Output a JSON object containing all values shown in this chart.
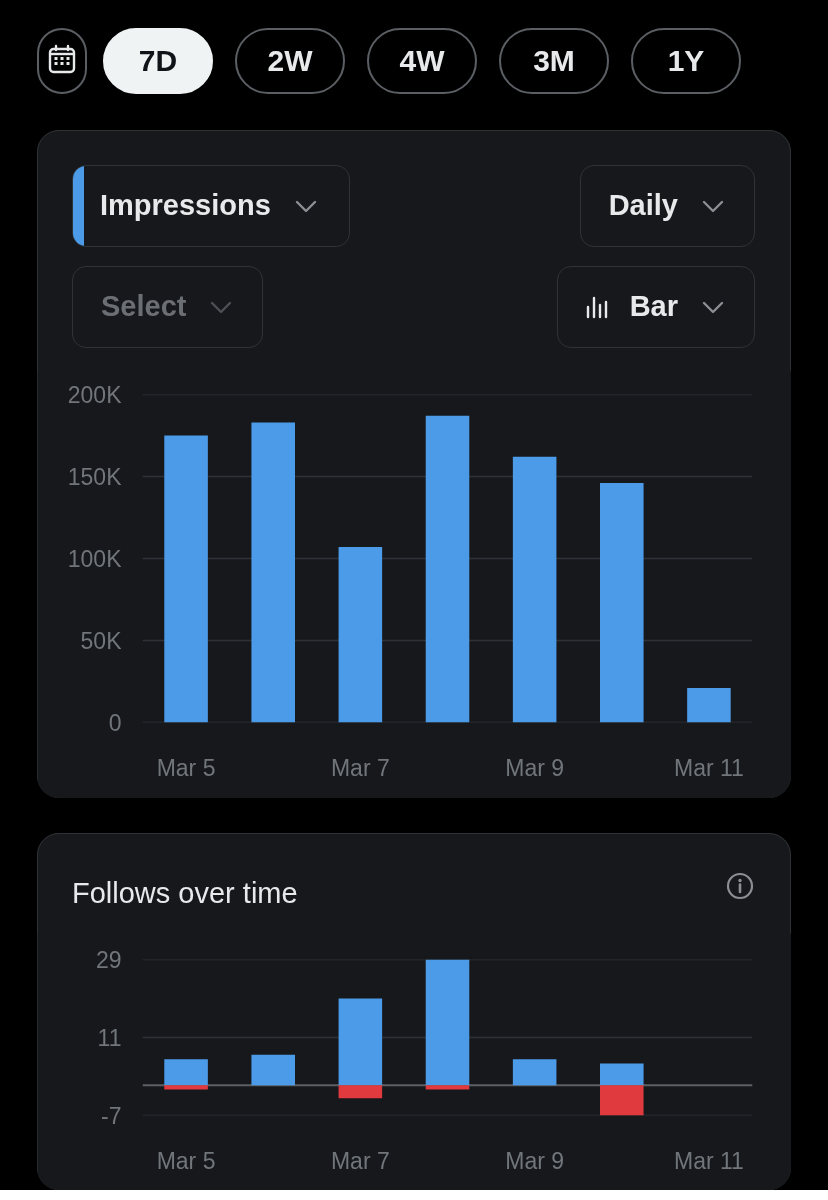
{
  "chart_data": [
    {
      "type": "other",
      "annotations": [
        "7D",
        "2W",
        "4W",
        "3M",
        "1Y"
      ]
    },
    {
      "type": "bar",
      "categories": [
        "Mar 5",
        null,
        "Mar 7",
        null,
        "Mar 9",
        null,
        "Mar 11"
      ],
      "series": [
        {
          "name": "Impressions",
          "color": "#4c9be8",
          "values": [
            175000,
            183000,
            107000,
            187000,
            162000,
            146000,
            21000
          ]
        }
      ],
      "ylim": [
        0,
        200000
      ],
      "yticks": [
        0,
        {
          "value": 50000,
          "label": "50K"
        },
        {
          "value": 100000,
          "label": "100K"
        },
        {
          "value": 150000,
          "label": "150K"
        },
        {
          "value": 200000,
          "label": "200K"
        }
      ],
      "grid": "y",
      "legend": "top left",
      "annotations": [
        "Daily",
        "Select",
        "Bar"
      ]
    },
    {
      "type": "bar",
      "title": "Follows over time",
      "categories": [
        "Mar 5",
        null,
        "Mar 7",
        null,
        "Mar 9",
        null,
        "Mar 11"
      ],
      "stacked": true,
      "series": [
        {
          "color": "#4c9be8",
          "values": [
            6,
            7,
            20,
            29,
            6,
            5,
            0
          ]
        },
        {
          "color": "#e03a3e",
          "values": [
            -1,
            0,
            -3,
            -1,
            0,
            -7,
            0
          ]
        }
      ],
      "ylim": [
        -7,
        29
      ],
      "yticks": [
        -7,
        11,
        29
      ],
      "grid": "y",
      "ref_lines": [
        {
          "axis": "y",
          "value": 0,
          "color": "#5c5f64"
        }
      ]
    }
  ]
}
